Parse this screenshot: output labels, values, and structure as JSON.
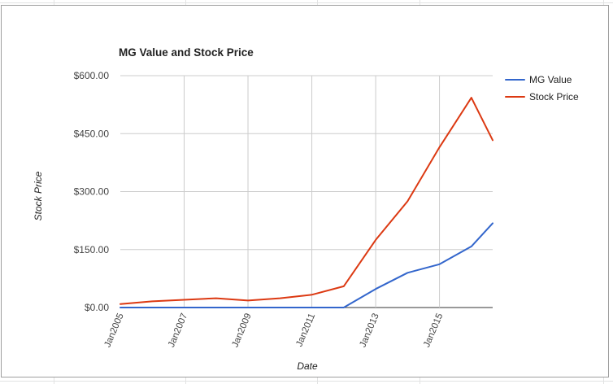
{
  "chart_data": {
    "type": "line",
    "title": "MG Value and Stock Price",
    "xlabel": "Date",
    "ylabel": "Stock Price",
    "x": [
      "2005-01",
      "2006-01",
      "2007-01",
      "2008-01",
      "2009-01",
      "2010-01",
      "2011-01",
      "2012-01",
      "2013-01",
      "2014-01",
      "2015-01",
      "2016-01",
      "2016-09"
    ],
    "x_tick_labels": [
      "Jan2005",
      "Jan2007",
      "Jan2009",
      "Jan2011",
      "Jan2013",
      "Jan2015"
    ],
    "x_tick_dates": [
      "2005-01",
      "2007-01",
      "2009-01",
      "2011-01",
      "2013-01",
      "2015-01"
    ],
    "xlim": [
      "2005-01",
      "2016-09"
    ],
    "ylim": [
      0,
      600
    ],
    "y_ticks": [
      0,
      150,
      300,
      450,
      600
    ],
    "y_tick_labels": [
      "$0.00",
      "$150.00",
      "$300.00",
      "$450.00",
      "$600.00"
    ],
    "grid": true,
    "legend_position": "right",
    "series": [
      {
        "name": "MG Value",
        "color": "#3366cc",
        "values": [
          0,
          0,
          0,
          0,
          0,
          0,
          0,
          0,
          48,
          90,
          112,
          158,
          218
        ]
      },
      {
        "name": "Stock Price",
        "color": "#dc3912",
        "values": [
          9,
          16,
          20,
          24,
          18,
          24,
          33,
          55,
          175,
          275,
          415,
          543,
          433
        ]
      }
    ]
  }
}
